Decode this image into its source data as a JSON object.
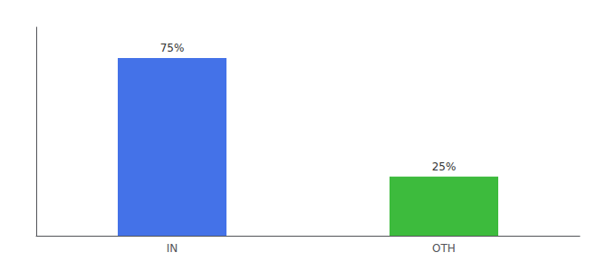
{
  "chart_data": {
    "type": "bar",
    "categories": [
      "IN",
      "OTH"
    ],
    "values": [
      75,
      25
    ],
    "colors": [
      "#4472e8",
      "#3dbb3d"
    ],
    "value_labels": [
      "75%",
      "25%"
    ],
    "data_labels": true,
    "ylim": [
      0,
      88
    ],
    "tick_labels": "x",
    "grid": false
  }
}
